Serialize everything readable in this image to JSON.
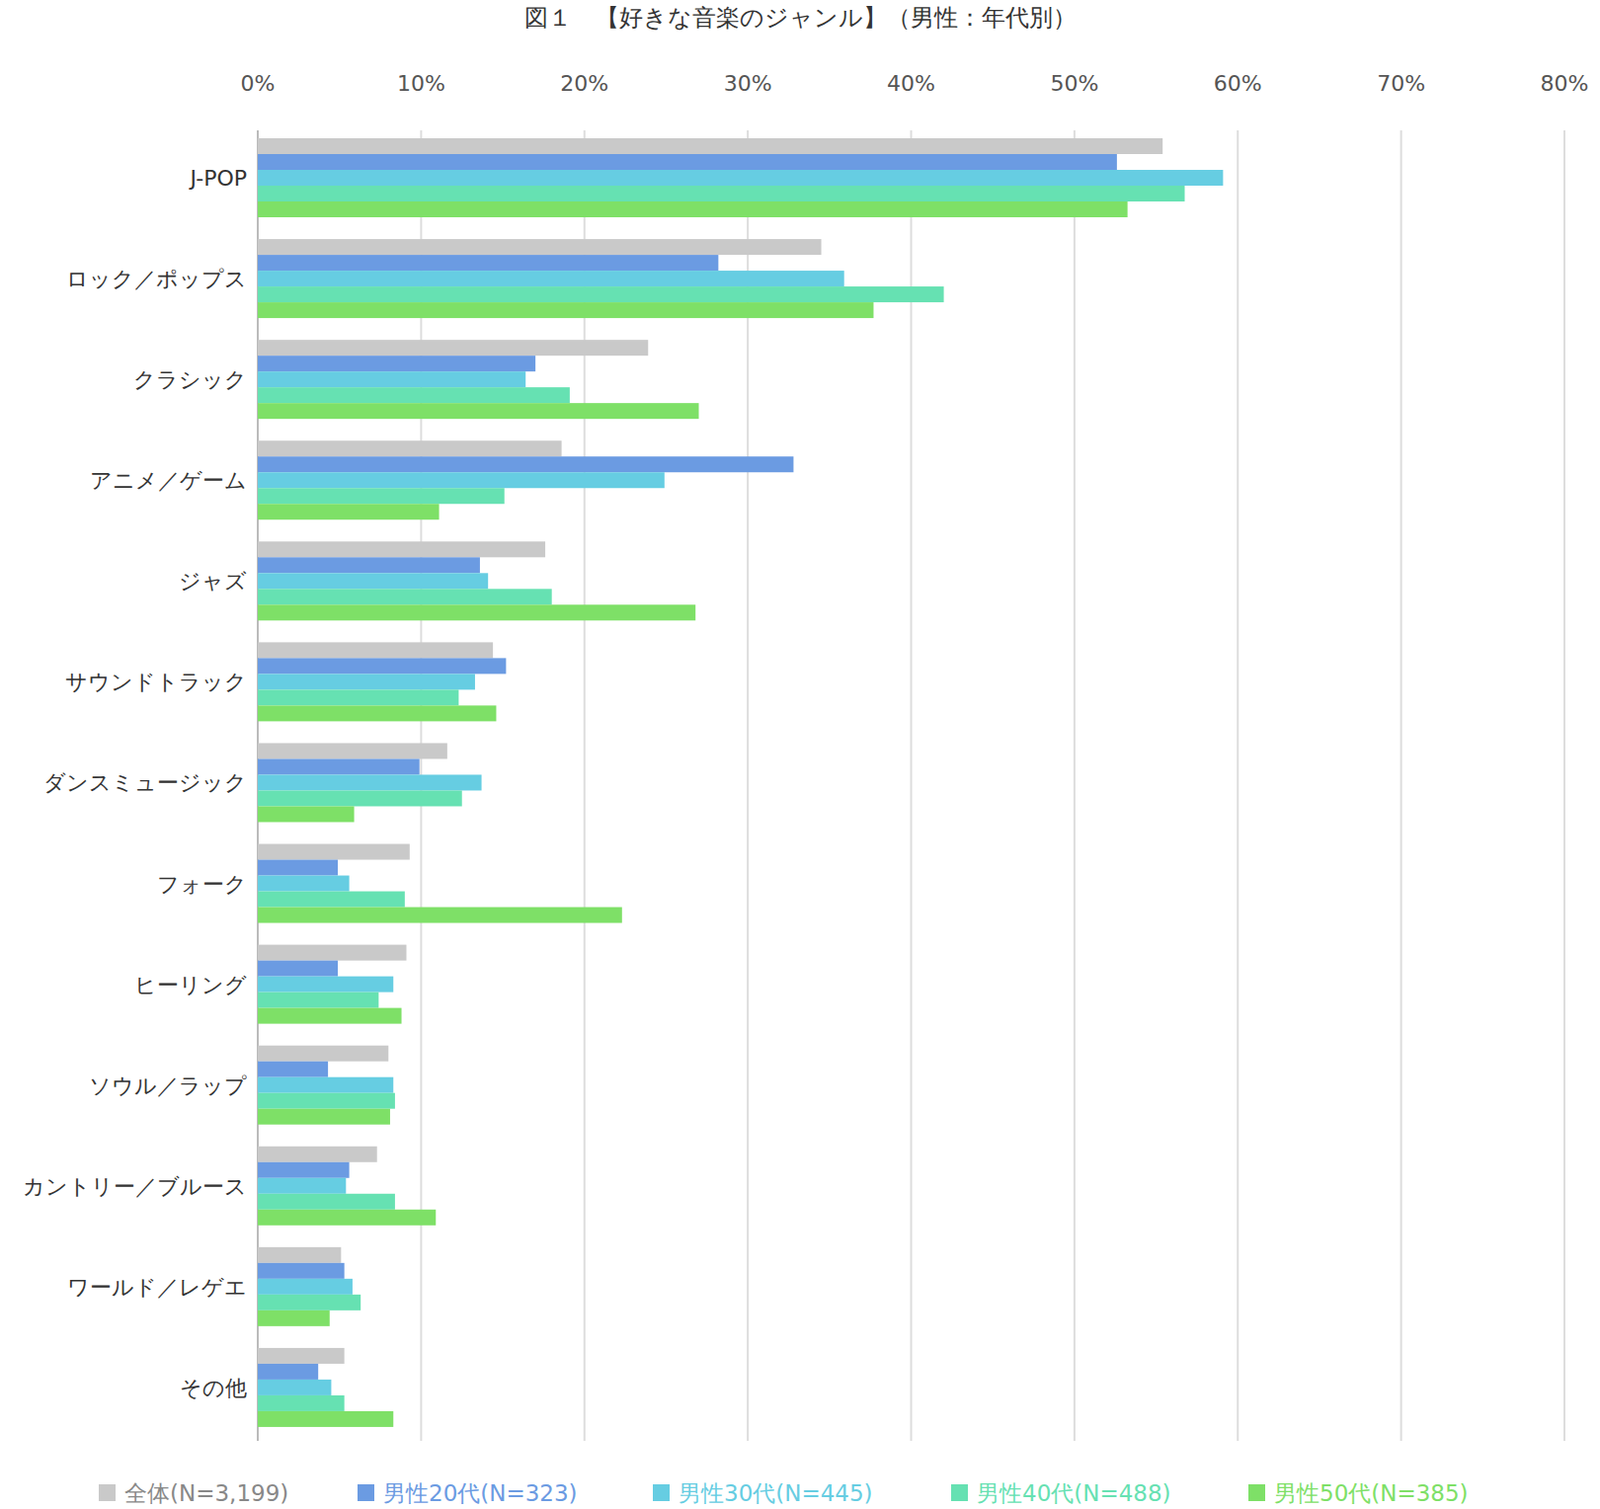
{
  "chart_data": {
    "type": "bar",
    "orientation": "horizontal",
    "title": "図１　【好きな音楽のジャンル】（男性：年代別）",
    "categories": [
      "J-POP",
      "ロック／ポップス",
      "クラシック",
      "アニメ／ゲーム",
      "ジャズ",
      "サウンドトラック",
      "ダンスミュージック",
      "フォーク",
      "ヒーリング",
      "ソウル／ラップ",
      "カントリー／ブルース",
      "ワールド／レゲエ",
      "その他"
    ],
    "series": [
      {
        "name": "全体(N=3,199)",
        "color": "#c9c9c9",
        "values": [
          55.4,
          34.5,
          23.9,
          18.6,
          17.6,
          14.4,
          11.6,
          9.3,
          9.1,
          8.0,
          7.3,
          5.1,
          5.3
        ]
      },
      {
        "name": "男性20代(N=323)",
        "color": "#6b9be2",
        "values": [
          52.6,
          28.2,
          17.0,
          32.8,
          13.6,
          15.2,
          9.9,
          4.9,
          4.9,
          4.3,
          5.6,
          5.3,
          3.7
        ]
      },
      {
        "name": "男性30代(N=445)",
        "color": "#66cde2",
        "values": [
          59.1,
          35.9,
          16.4,
          24.9,
          14.1,
          13.3,
          13.7,
          5.6,
          8.3,
          8.3,
          5.4,
          5.8,
          4.5
        ]
      },
      {
        "name": "男性40代(N=488)",
        "color": "#66e1b2",
        "values": [
          56.75,
          42.0,
          19.1,
          15.1,
          18.0,
          12.3,
          12.5,
          9.0,
          7.4,
          8.4,
          8.4,
          6.3,
          5.3
        ]
      },
      {
        "name": "男性50代(N=385)",
        "color": "#7ee067",
        "values": [
          53.25,
          37.7,
          27.0,
          11.1,
          26.8,
          14.6,
          5.9,
          22.3,
          8.8,
          8.1,
          10.9,
          4.4,
          8.3
        ]
      }
    ],
    "xlim": [
      0,
      80
    ],
    "xticks": [
      {
        "value": 0,
        "label": "0%"
      },
      {
        "value": 10,
        "label": "10%"
      },
      {
        "value": 20,
        "label": "20%"
      },
      {
        "value": 30,
        "label": "30%"
      },
      {
        "value": 40,
        "label": "40%"
      },
      {
        "value": 50,
        "label": "50%"
      },
      {
        "value": 60,
        "label": "60%"
      },
      {
        "value": 70,
        "label": "70%"
      },
      {
        "value": 80,
        "label": "80%"
      }
    ],
    "grid": true,
    "legend": "bottom"
  }
}
